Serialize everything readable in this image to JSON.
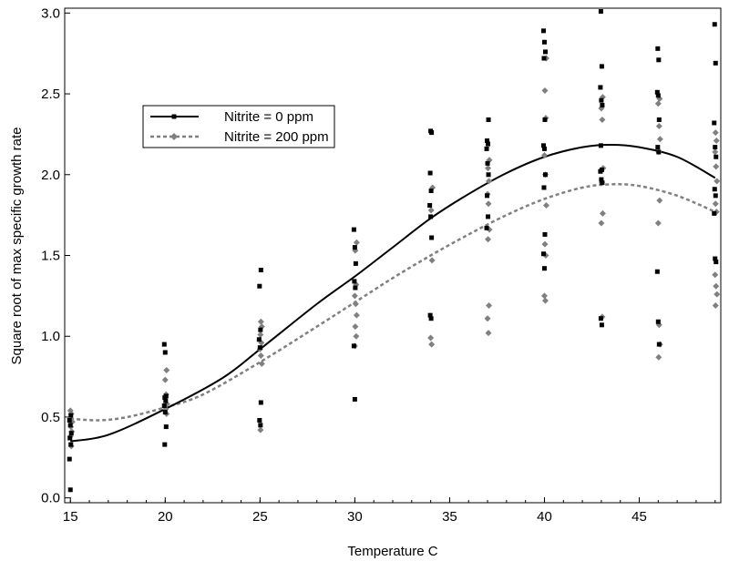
{
  "chart_data": {
    "type": "scatter",
    "title": "",
    "xlabel": "Temperature C",
    "ylabel": "Square root of max specific growth rate",
    "xlim": [
      14.7,
      49.3
    ],
    "ylim": [
      -0.03,
      3.03
    ],
    "xticks": [
      15,
      20,
      25,
      30,
      35,
      40,
      45
    ],
    "yticks": [
      0.0,
      0.5,
      1.0,
      1.5,
      2.0,
      2.5,
      3.0
    ],
    "ytick_labels": [
      "0.0",
      "0.5",
      "1.0",
      "1.5",
      "2.0",
      "2.5",
      "3.0"
    ],
    "grid": false,
    "legend_position": "top-left-inside",
    "series": [
      {
        "name": "Nitrite = 0 ppm",
        "color": "#000000",
        "line_style": "solid",
        "marker": "square",
        "points": [
          [
            15,
            0.05
          ],
          [
            15,
            0.24
          ],
          [
            15,
            0.33
          ],
          [
            15,
            0.37
          ],
          [
            15,
            0.4
          ],
          [
            15,
            0.45
          ],
          [
            15,
            0.48
          ],
          [
            15,
            0.51
          ],
          [
            20,
            0.33
          ],
          [
            20,
            0.44
          ],
          [
            20,
            0.53
          ],
          [
            20,
            0.57
          ],
          [
            20,
            0.6
          ],
          [
            20,
            0.62
          ],
          [
            20,
            0.63
          ],
          [
            20,
            0.9
          ],
          [
            20,
            0.95
          ],
          [
            25,
            0.45
          ],
          [
            25,
            0.48
          ],
          [
            25,
            0.59
          ],
          [
            25,
            0.93
          ],
          [
            25,
            0.98
          ],
          [
            25,
            1.04
          ],
          [
            25,
            1.31
          ],
          [
            25,
            1.41
          ],
          [
            30,
            0.61
          ],
          [
            30,
            0.94
          ],
          [
            30,
            1.3
          ],
          [
            30,
            1.34
          ],
          [
            30,
            1.45
          ],
          [
            30,
            1.55
          ],
          [
            30,
            1.66
          ],
          [
            34,
            1.11
          ],
          [
            34,
            1.13
          ],
          [
            34,
            1.61
          ],
          [
            34,
            1.74
          ],
          [
            34,
            1.81
          ],
          [
            34,
            1.9
          ],
          [
            34,
            2.01
          ],
          [
            34,
            2.26
          ],
          [
            34,
            2.27
          ],
          [
            37,
            1.67
          ],
          [
            37,
            1.74
          ],
          [
            37,
            1.87
          ],
          [
            37,
            2.0
          ],
          [
            37,
            2.07
          ],
          [
            37,
            2.16
          ],
          [
            37,
            2.19
          ],
          [
            37,
            2.21
          ],
          [
            37,
            2.34
          ],
          [
            40,
            1.42
          ],
          [
            40,
            1.51
          ],
          [
            40,
            1.63
          ],
          [
            40,
            1.92
          ],
          [
            40,
            2.0
          ],
          [
            40,
            2.16
          ],
          [
            40,
            2.18
          ],
          [
            40,
            2.34
          ],
          [
            40,
            2.72
          ],
          [
            40,
            2.76
          ],
          [
            40,
            2.82
          ],
          [
            40,
            2.89
          ],
          [
            43,
            1.07
          ],
          [
            43,
            1.11
          ],
          [
            43,
            1.95
          ],
          [
            43,
            1.97
          ],
          [
            43,
            2.02
          ],
          [
            43,
            2.03
          ],
          [
            43,
            2.18
          ],
          [
            43,
            2.43
          ],
          [
            43,
            2.46
          ],
          [
            43,
            2.54
          ],
          [
            43,
            2.67
          ],
          [
            43,
            3.01
          ],
          [
            46,
            0.95
          ],
          [
            46,
            1.09
          ],
          [
            46,
            1.4
          ],
          [
            46,
            2.14
          ],
          [
            46,
            2.17
          ],
          [
            46,
            2.34
          ],
          [
            46,
            2.49
          ],
          [
            46,
            2.51
          ],
          [
            46,
            2.71
          ],
          [
            46,
            2.78
          ],
          [
            49,
            1.46
          ],
          [
            49,
            1.48
          ],
          [
            49,
            1.76
          ],
          [
            49,
            1.87
          ],
          [
            49,
            1.91
          ],
          [
            49,
            2.11
          ],
          [
            49,
            2.17
          ],
          [
            49,
            2.32
          ],
          [
            49,
            2.69
          ],
          [
            49,
            2.93
          ]
        ],
        "curve": [
          [
            15,
            0.35
          ],
          [
            17,
            0.39
          ],
          [
            20,
            0.55
          ],
          [
            23,
            0.74
          ],
          [
            25,
            0.92
          ],
          [
            28,
            1.2
          ],
          [
            30,
            1.37
          ],
          [
            32,
            1.55
          ],
          [
            34,
            1.73
          ],
          [
            36,
            1.88
          ],
          [
            38,
            2.01
          ],
          [
            40,
            2.11
          ],
          [
            42,
            2.17
          ],
          [
            43.5,
            2.185
          ],
          [
            45,
            2.17
          ],
          [
            47,
            2.11
          ],
          [
            49,
            1.98
          ]
        ]
      },
      {
        "name": "Nitrite = 200 ppm",
        "color": "#808080",
        "line_style": "dashed",
        "marker": "diamond",
        "points": [
          [
            15,
            0.32
          ],
          [
            15,
            0.38
          ],
          [
            15,
            0.41
          ],
          [
            15,
            0.44
          ],
          [
            15,
            0.47
          ],
          [
            15,
            0.52
          ],
          [
            15,
            0.54
          ],
          [
            20,
            0.52
          ],
          [
            20,
            0.55
          ],
          [
            20,
            0.58
          ],
          [
            20,
            0.64
          ],
          [
            20,
            0.73
          ],
          [
            20,
            0.79
          ],
          [
            25,
            0.42
          ],
          [
            25,
            0.83
          ],
          [
            25,
            0.88
          ],
          [
            25,
            0.92
          ],
          [
            25,
            0.96
          ],
          [
            25,
            1.01
          ],
          [
            25,
            1.06
          ],
          [
            25,
            1.09
          ],
          [
            30,
            0.94
          ],
          [
            30,
            1.0
          ],
          [
            30,
            1.06
          ],
          [
            30,
            1.13
          ],
          [
            30,
            1.2
          ],
          [
            30,
            1.25
          ],
          [
            30,
            1.32
          ],
          [
            30,
            1.53
          ],
          [
            30,
            1.58
          ],
          [
            34,
            0.95
          ],
          [
            34,
            0.99
          ],
          [
            34,
            1.47
          ],
          [
            34,
            1.78
          ],
          [
            34,
            1.92
          ],
          [
            37,
            1.02
          ],
          [
            37,
            1.11
          ],
          [
            37,
            1.19
          ],
          [
            37,
            1.6
          ],
          [
            37,
            1.66
          ],
          [
            37,
            1.82
          ],
          [
            37,
            1.88
          ],
          [
            37,
            1.96
          ],
          [
            37,
            2.04
          ],
          [
            37,
            2.09
          ],
          [
            40,
            1.22
          ],
          [
            40,
            1.25
          ],
          [
            40,
            1.5
          ],
          [
            40,
            1.57
          ],
          [
            40,
            1.81
          ],
          [
            40,
            2.0
          ],
          [
            40,
            2.12
          ],
          [
            40,
            2.35
          ],
          [
            40,
            2.52
          ],
          [
            40,
            2.72
          ],
          [
            43,
            1.12
          ],
          [
            43,
            1.7
          ],
          [
            43,
            1.76
          ],
          [
            43,
            1.95
          ],
          [
            43,
            2.04
          ],
          [
            43,
            2.34
          ],
          [
            43,
            2.41
          ],
          [
            43,
            2.48
          ],
          [
            46,
            0.87
          ],
          [
            46,
            0.95
          ],
          [
            46,
            1.07
          ],
          [
            46,
            1.7
          ],
          [
            46,
            1.84
          ],
          [
            46,
            2.14
          ],
          [
            46,
            2.22
          ],
          [
            46,
            2.3
          ],
          [
            46,
            2.44
          ],
          [
            46,
            2.47
          ],
          [
            49,
            1.19
          ],
          [
            49,
            1.26
          ],
          [
            49,
            1.31
          ],
          [
            49,
            1.38
          ],
          [
            49,
            1.77
          ],
          [
            49,
            1.82
          ],
          [
            49,
            1.96
          ],
          [
            49,
            2.05
          ],
          [
            49,
            2.14
          ],
          [
            49,
            2.21
          ],
          [
            49,
            2.26
          ]
        ],
        "curve": [
          [
            15,
            0.49
          ],
          [
            16.5,
            0.48
          ],
          [
            18,
            0.5
          ],
          [
            20,
            0.56
          ],
          [
            22,
            0.64
          ],
          [
            25,
            0.84
          ],
          [
            28,
            1.06
          ],
          [
            30,
            1.21
          ],
          [
            32,
            1.36
          ],
          [
            34,
            1.5
          ],
          [
            36,
            1.63
          ],
          [
            38,
            1.75
          ],
          [
            40,
            1.85
          ],
          [
            42,
            1.92
          ],
          [
            43.5,
            1.94
          ],
          [
            45,
            1.93
          ],
          [
            47,
            1.87
          ],
          [
            49,
            1.77
          ]
        ]
      }
    ]
  }
}
